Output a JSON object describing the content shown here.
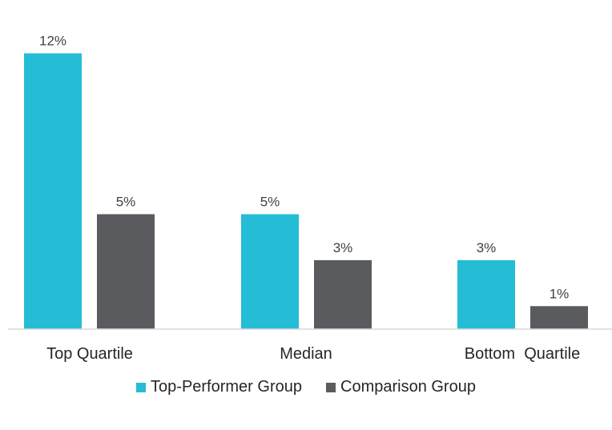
{
  "chart_data": {
    "type": "bar",
    "categories": [
      "Top Quartile",
      "Median",
      "Bottom  Quartile"
    ],
    "series": [
      {
        "name": "Top-Performer Group",
        "values": [
          12,
          5,
          3
        ],
        "labels": [
          "12%",
          "5%",
          "3%"
        ],
        "color": "#25BCD5"
      },
      {
        "name": "Comparison Group",
        "values": [
          5,
          3,
          1
        ],
        "labels": [
          "5%",
          "3%",
          "1%"
        ],
        "color": "#5A5B5F"
      }
    ],
    "ylim": [
      0,
      12
    ],
    "grid": false,
    "legend_position": "bottom",
    "axis_color": "#D9D9D9"
  }
}
